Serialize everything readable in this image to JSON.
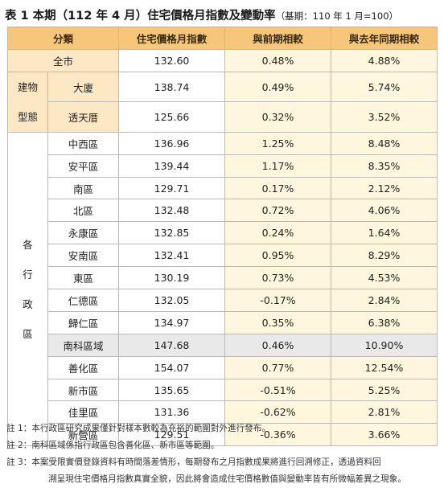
{
  "caption": {
    "main": "表 1 本期（112 年 4 月）住宅價格月指數及變動率",
    "base": "（基期：110 年 1 月=100）"
  },
  "headers": [
    "分類",
    "住宅價格月指數",
    "與前期相較",
    "與去年同期相較"
  ],
  "all_city": {
    "label": "全市",
    "index": "132.60",
    "mom": "0.48%",
    "yoy": "4.88%"
  },
  "building_type": {
    "group_label": [
      "建物",
      "型態"
    ],
    "rows": [
      {
        "label": "大廈",
        "index": "138.74",
        "mom": "0.49%",
        "yoy": "5.74%"
      },
      {
        "label": "透天厝",
        "index": "125.66",
        "mom": "0.32%",
        "yoy": "3.52%"
      }
    ]
  },
  "districts": {
    "group_label": [
      "各",
      "行",
      "政",
      "區"
    ],
    "rows": [
      {
        "label": "中西區",
        "index": "136.96",
        "mom": "1.25%",
        "yoy": "8.48%"
      },
      {
        "label": "安平區",
        "index": "139.44",
        "mom": "1.17%",
        "yoy": "8.35%"
      },
      {
        "label": "南區",
        "index": "129.71",
        "mom": "0.17%",
        "yoy": "2.12%"
      },
      {
        "label": "北區",
        "index": "132.48",
        "mom": "0.72%",
        "yoy": "4.06%"
      },
      {
        "label": "永康區",
        "index": "132.85",
        "mom": "0.24%",
        "yoy": "1.64%"
      },
      {
        "label": "安南區",
        "index": "132.41",
        "mom": "0.95%",
        "yoy": "8.29%"
      },
      {
        "label": "東區",
        "index": "130.19",
        "mom": "0.73%",
        "yoy": "4.53%"
      },
      {
        "label": "仁德區",
        "index": "132.05",
        "mom": "-0.17%",
        "yoy": "2.84%"
      },
      {
        "label": "歸仁區",
        "index": "134.97",
        "mom": "0.35%",
        "yoy": "6.38%"
      },
      {
        "label": "南科區域",
        "index": "147.68",
        "mom": "0.46%",
        "yoy": "10.90%"
      },
      {
        "label": "善化區",
        "index": "154.07",
        "mom": "0.77%",
        "yoy": "12.54%"
      },
      {
        "label": "新市區",
        "index": "135.65",
        "mom": "-0.51%",
        "yoy": "5.25%"
      },
      {
        "label": "佳里區",
        "index": "131.36",
        "mom": "-0.62%",
        "yoy": "2.81%"
      },
      {
        "label": "新營區",
        "index": "129.51",
        "mom": "-0.36%",
        "yoy": "3.66%"
      }
    ]
  },
  "notes": [
    "註 1：本行政區研究成果僅針對樣本數較為充裕的範圍對外進行發布。",
    "註 2：南科區域係指行政區包含善化區、新市區等範圍。",
    "註 3：本案受限實價登錄資料有時間落差情形，每期發布之月指數成果將進行回溯修正，透過資料回",
    "溯呈現住宅價格月指數真實全貌，因此將會造成住宅價格數值與變動率皆有所微幅差異之現象。"
  ],
  "colors": {
    "header_bg": "#f6c67a",
    "category_bg": "#fde8c6",
    "cream": "#fff6de",
    "highlight_gray": "#e9e9e9"
  }
}
